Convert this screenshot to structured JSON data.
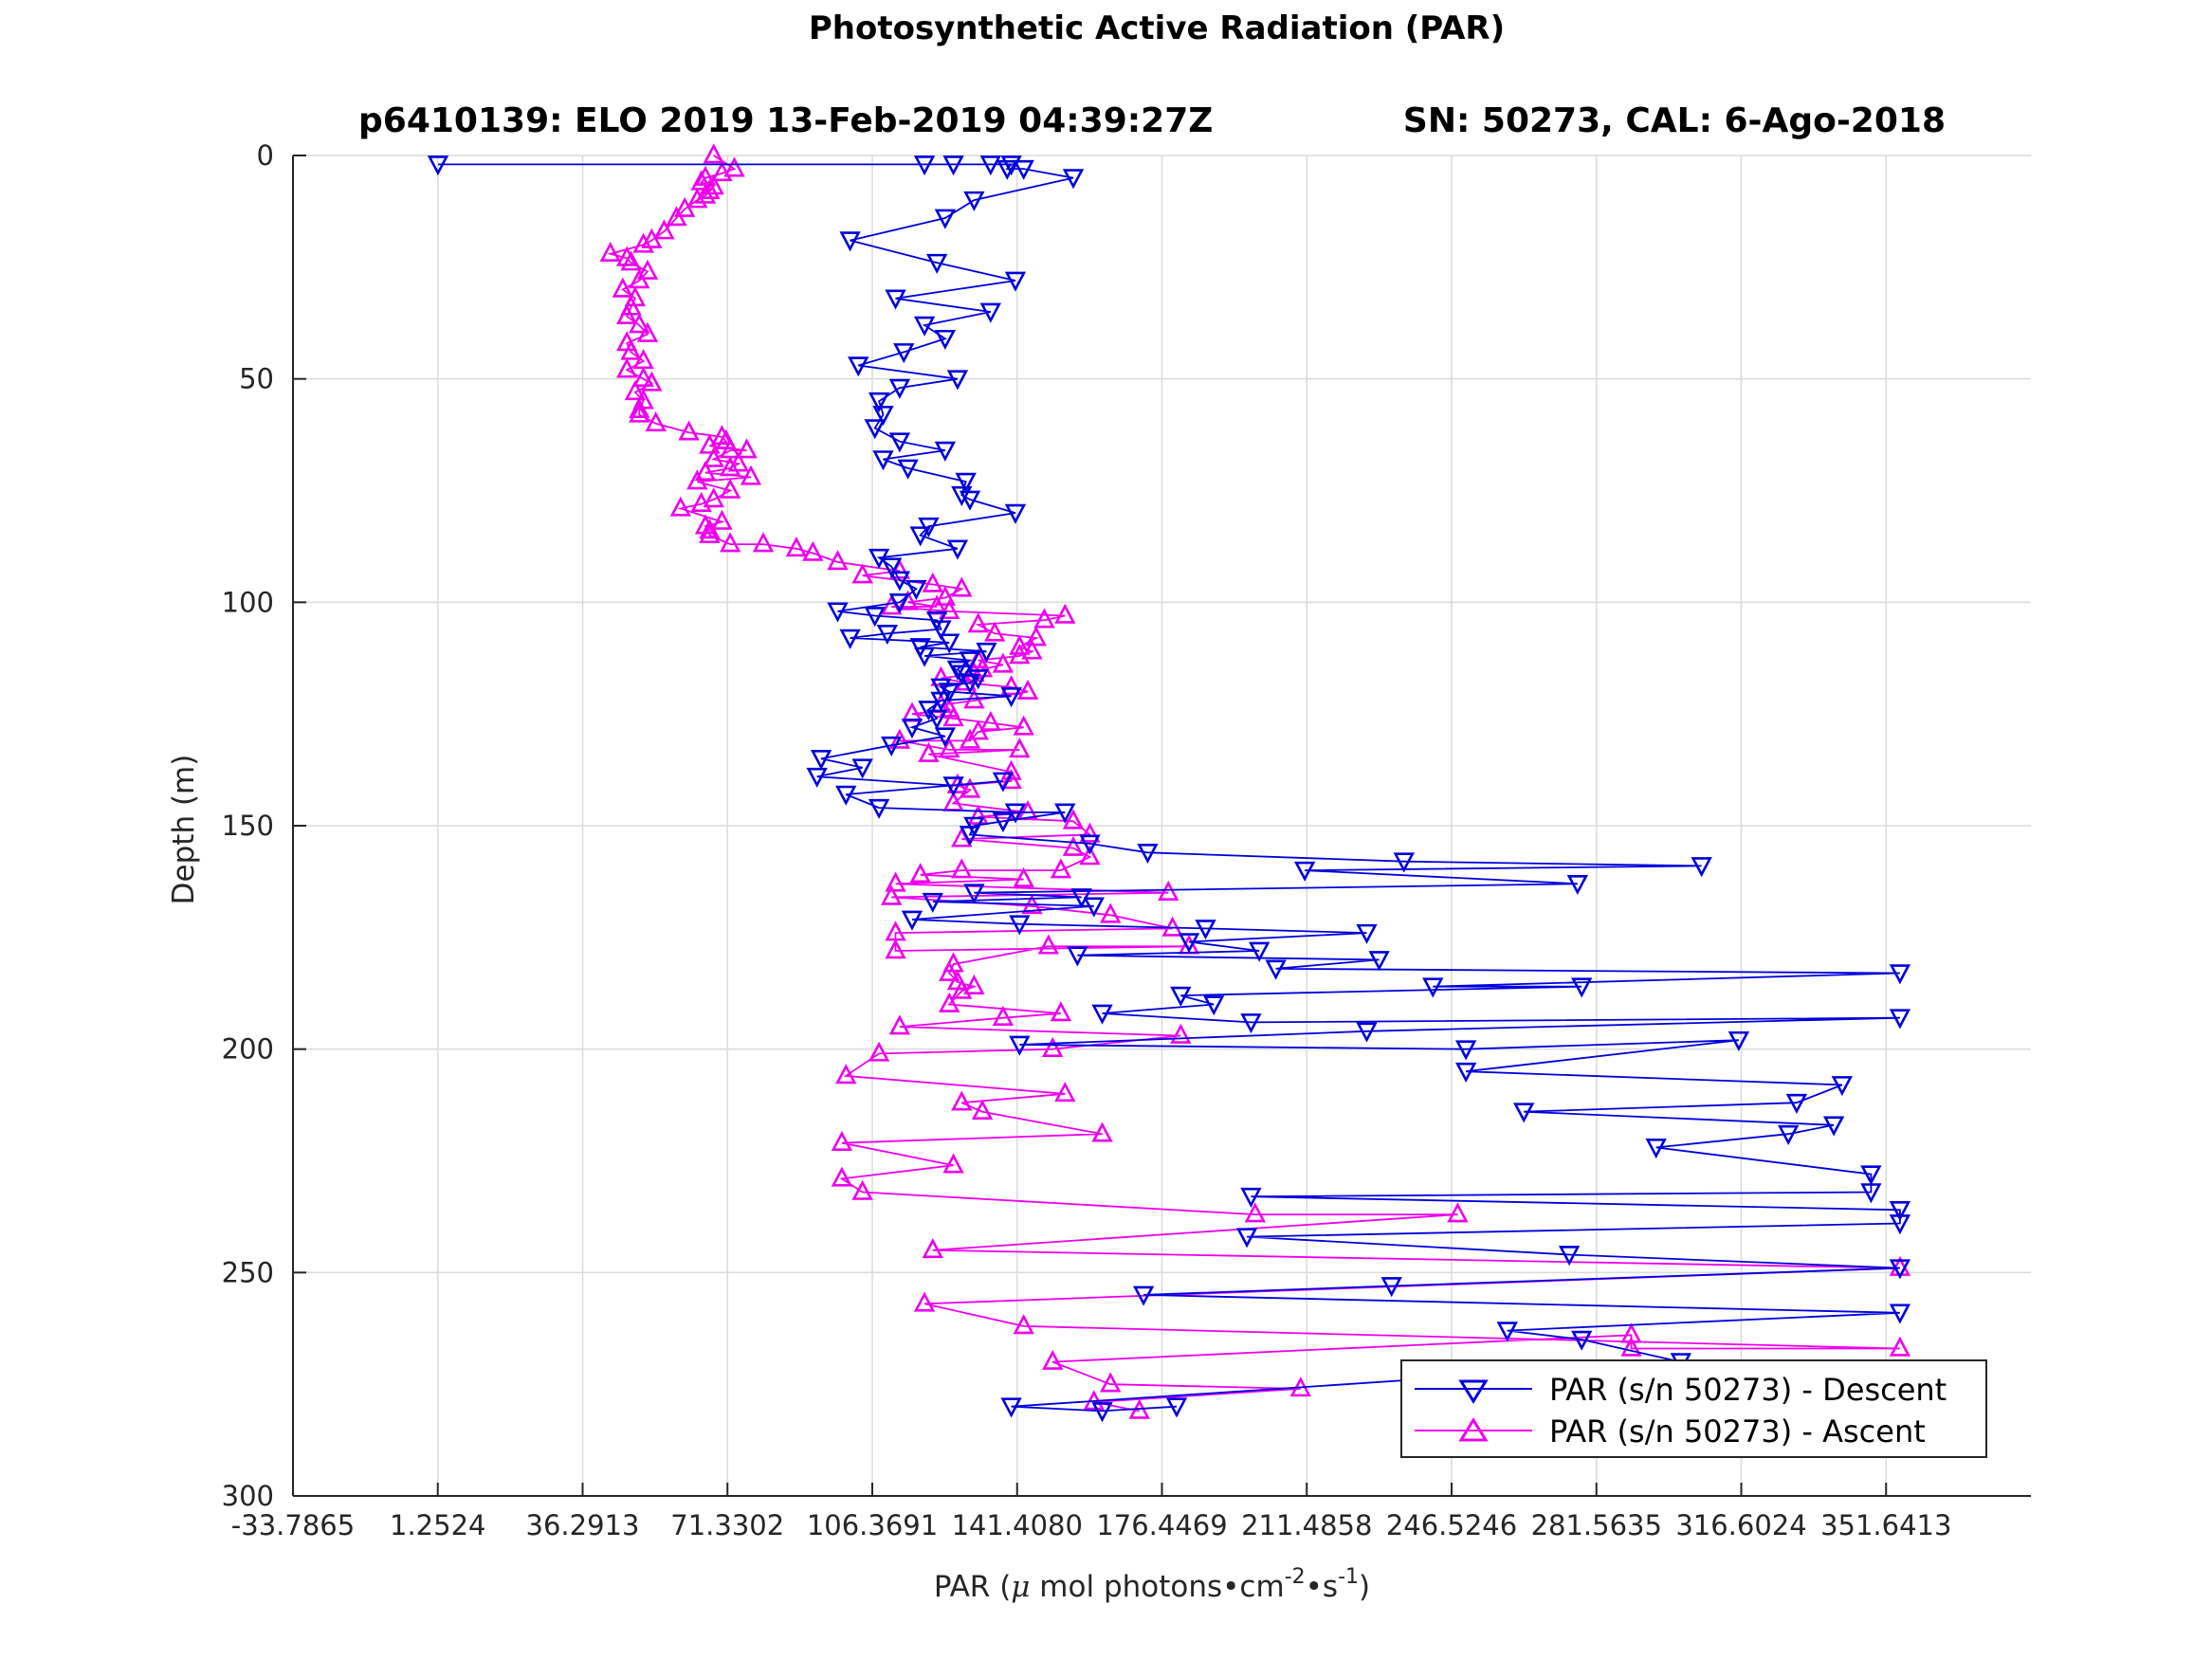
{
  "chart_data": {
    "type": "line",
    "title": "Photosynthetic Active Radiation (PAR)",
    "subtitle_left": "p6410139: ELO 2019 13-Feb-2019 04:39:27Z",
    "subtitle_right": "SN: 50273, CAL: 6-Ago-2018",
    "xlabel": "PAR (μ mol photons•cm⁻²•s⁻¹)",
    "xlabel_parts": {
      "prefix": "PAR (",
      "mu": "μ",
      "mid": " mol photons•cm",
      "exp1": "-2",
      "mid2": "•s",
      "exp2": "-1",
      "suffix": ")"
    },
    "ylabel": "Depth (m)",
    "xlim": [
      -33.7865,
      386.68
    ],
    "ylim": [
      300,
      0
    ],
    "y_reversed": true,
    "x_ticks": [
      -33.7865,
      1.2524,
      36.2913,
      71.3302,
      106.3691,
      141.408,
      176.4469,
      211.4858,
      246.5246,
      281.5635,
      316.6024,
      351.6413
    ],
    "x_tick_labels": [
      "-33.7865",
      "1.2524",
      "36.2913",
      "71.3302",
      "106.3691",
      "141.4080",
      "176.4469",
      "211.4858",
      "246.5246",
      "281.5635",
      "316.6024",
      "351.6413"
    ],
    "y_ticks": [
      0,
      50,
      100,
      150,
      200,
      250,
      300
    ],
    "y_tick_labels": [
      "0",
      "50",
      "100",
      "150",
      "200",
      "250",
      "300"
    ],
    "grid": true,
    "legend_position": "bottom-right",
    "series": [
      {
        "name": "PAR (s/n 50273) - Descent",
        "color": "#0000dd",
        "marker": "triangle-down",
        "points": [
          [
            1.3,
            2
          ],
          [
            119,
            2
          ],
          [
            126,
            2
          ],
          [
            135,
            2
          ],
          [
            140,
            2
          ],
          [
            139,
            3
          ],
          [
            143,
            3
          ],
          [
            155,
            5
          ],
          [
            131,
            10
          ],
          [
            124,
            14
          ],
          [
            101,
            19
          ],
          [
            122,
            24
          ],
          [
            141,
            28
          ],
          [
            112,
            32
          ],
          [
            135,
            35
          ],
          [
            119,
            38
          ],
          [
            124,
            41
          ],
          [
            114,
            44
          ],
          [
            103,
            47
          ],
          [
            127,
            50
          ],
          [
            113,
            52
          ],
          [
            108,
            55
          ],
          [
            109,
            58
          ],
          [
            107,
            61
          ],
          [
            113,
            64
          ],
          [
            124,
            66
          ],
          [
            109,
            68
          ],
          [
            115,
            70
          ],
          [
            129,
            73
          ],
          [
            128,
            76
          ],
          [
            130,
            77
          ],
          [
            141,
            80
          ],
          [
            120,
            83
          ],
          [
            118,
            85
          ],
          [
            127,
            88
          ],
          [
            108,
            90
          ],
          [
            111,
            92
          ],
          [
            113,
            95
          ],
          [
            117,
            97
          ],
          [
            113,
            100
          ],
          [
            98,
            102
          ],
          [
            107,
            103
          ],
          [
            122,
            104
          ],
          [
            123,
            106
          ],
          [
            110,
            107
          ],
          [
            101,
            108
          ],
          [
            125,
            109
          ],
          [
            118,
            110
          ],
          [
            134,
            111
          ],
          [
            119,
            112
          ],
          [
            130,
            113
          ],
          [
            127,
            115
          ],
          [
            128,
            116
          ],
          [
            132,
            117
          ],
          [
            130,
            118
          ],
          [
            123,
            119
          ],
          [
            125,
            120
          ],
          [
            140,
            121
          ],
          [
            123,
            122
          ],
          [
            120,
            124
          ],
          [
            122,
            126
          ],
          [
            116,
            128
          ],
          [
            124,
            130
          ],
          [
            111,
            132
          ],
          [
            94,
            135
          ],
          [
            104,
            137
          ],
          [
            93,
            139
          ],
          [
            126,
            141
          ],
          [
            138,
            140
          ],
          [
            100,
            143
          ],
          [
            108,
            146
          ],
          [
            141,
            147
          ],
          [
            153,
            147
          ],
          [
            138,
            149
          ],
          [
            131,
            150
          ],
          [
            130,
            152
          ],
          [
            159,
            154
          ],
          [
            173,
            156
          ],
          [
            235,
            158
          ],
          [
            307,
            159
          ],
          [
            211,
            160
          ],
          [
            277,
            163
          ],
          [
            131,
            165
          ],
          [
            157,
            166
          ],
          [
            121,
            167
          ],
          [
            160,
            168
          ],
          [
            116,
            171
          ],
          [
            142,
            172
          ],
          [
            187,
            173
          ],
          [
            226,
            174
          ],
          [
            183,
            176
          ],
          [
            200,
            178
          ],
          [
            156,
            179
          ],
          [
            229,
            180
          ],
          [
            204,
            182
          ],
          [
            355,
            183
          ],
          [
            242,
            186
          ],
          [
            278,
            186
          ],
          [
            181,
            188
          ],
          [
            189,
            190
          ],
          [
            162,
            192
          ],
          [
            198,
            194
          ],
          [
            355,
            193
          ],
          [
            226,
            196
          ],
          [
            142,
            199
          ],
          [
            250,
            200
          ],
          [
            316,
            198
          ],
          [
            250,
            205
          ],
          [
            341,
            208
          ],
          [
            330,
            212
          ],
          [
            264,
            214
          ],
          [
            339,
            217
          ],
          [
            328,
            219
          ],
          [
            296,
            222
          ],
          [
            348,
            228
          ],
          [
            348,
            232
          ],
          [
            198,
            233
          ],
          [
            355,
            236
          ],
          [
            355,
            239
          ],
          [
            197,
            242
          ],
          [
            275,
            246
          ],
          [
            355,
            249
          ],
          [
            232,
            253
          ],
          [
            172,
            255
          ],
          [
            355,
            259
          ],
          [
            260,
            263
          ],
          [
            278,
            265
          ],
          [
            302,
            270
          ],
          [
            140,
            280
          ],
          [
            162,
            281
          ],
          [
            180,
            280
          ]
        ]
      },
      {
        "name": "PAR (s/n 50273) - Ascent",
        "color": "#ee00ee",
        "marker": "triangle-up",
        "points": [
          [
            171,
            281
          ],
          [
            160,
            279
          ],
          [
            210,
            276
          ],
          [
            164,
            275
          ],
          [
            150,
            270
          ],
          [
            290,
            264
          ],
          [
            290,
            267
          ],
          [
            355,
            267
          ],
          [
            143,
            262
          ],
          [
            119,
            257
          ],
          [
            355,
            249
          ],
          [
            121,
            245
          ],
          [
            248,
            237
          ],
          [
            199,
            237
          ],
          [
            104,
            232
          ],
          [
            99,
            229
          ],
          [
            126,
            226
          ],
          [
            99,
            221
          ],
          [
            162,
            219
          ],
          [
            133,
            214
          ],
          [
            128,
            212
          ],
          [
            153,
            210
          ],
          [
            100,
            206
          ],
          [
            108,
            201
          ],
          [
            150,
            200
          ],
          [
            181,
            197
          ],
          [
            113,
            195
          ],
          [
            138,
            193
          ],
          [
            152,
            192
          ],
          [
            125,
            190
          ],
          [
            128,
            187
          ],
          [
            131,
            186
          ],
          [
            127,
            185
          ],
          [
            125,
            183
          ],
          [
            126,
            181
          ],
          [
            149,
            177
          ],
          [
            183,
            177
          ],
          [
            112,
            178
          ],
          [
            112,
            174
          ],
          [
            179,
            173
          ],
          [
            164,
            170
          ],
          [
            145,
            168
          ],
          [
            111,
            166
          ],
          [
            178,
            165
          ],
          [
            112,
            163
          ],
          [
            143,
            162
          ],
          [
            118,
            161
          ],
          [
            128,
            160
          ],
          [
            152,
            160
          ],
          [
            159,
            157
          ],
          [
            155,
            155
          ],
          [
            128,
            153
          ],
          [
            159,
            152
          ],
          [
            155,
            149
          ],
          [
            132,
            148
          ],
          [
            144,
            147
          ],
          [
            126,
            145
          ],
          [
            130,
            142
          ],
          [
            127,
            141
          ],
          [
            140,
            140
          ],
          [
            140,
            138
          ],
          [
            120,
            134
          ],
          [
            142,
            133
          ],
          [
            125,
            133
          ],
          [
            113,
            131
          ],
          [
            130,
            131
          ],
          [
            132,
            129
          ],
          [
            143,
            128
          ],
          [
            135,
            127
          ],
          [
            126,
            126
          ],
          [
            116,
            125
          ],
          [
            125,
            124
          ],
          [
            123,
            123
          ],
          [
            131,
            122
          ],
          [
            144,
            120
          ],
          [
            140,
            119
          ],
          [
            129,
            118
          ],
          [
            123,
            117
          ],
          [
            131,
            116
          ],
          [
            133,
            115
          ],
          [
            138,
            114
          ],
          [
            132,
            113
          ],
          [
            142,
            112
          ],
          [
            145,
            111
          ],
          [
            142,
            110
          ],
          [
            146,
            108
          ],
          [
            136,
            107
          ],
          [
            132,
            105
          ],
          [
            148,
            104
          ],
          [
            153,
            103
          ],
          [
            125,
            102
          ],
          [
            111,
            101
          ],
          [
            122,
            101
          ],
          [
            115,
            100
          ],
          [
            124,
            99
          ],
          [
            128,
            97
          ],
          [
            121,
            96
          ],
          [
            104,
            94
          ],
          [
            113,
            93
          ],
          [
            98,
            91
          ],
          [
            92,
            89
          ],
          [
            88,
            88
          ],
          [
            80,
            87
          ],
          [
            72,
            87
          ],
          [
            67,
            85
          ],
          [
            67,
            84
          ],
          [
            66,
            83
          ],
          [
            70,
            82
          ],
          [
            60,
            79
          ],
          [
            65,
            78
          ],
          [
            68,
            77
          ],
          [
            72,
            75
          ],
          [
            64,
            73
          ],
          [
            77,
            72
          ],
          [
            66,
            71
          ],
          [
            72,
            70
          ],
          [
            74,
            69
          ],
          [
            68,
            68
          ],
          [
            72,
            66
          ],
          [
            76,
            66
          ],
          [
            67,
            65
          ],
          [
            71,
            64
          ],
          [
            70,
            63
          ],
          [
            62,
            62
          ],
          [
            54,
            60
          ],
          [
            50,
            58
          ],
          [
            50,
            57
          ],
          [
            51,
            55
          ],
          [
            49,
            53
          ],
          [
            53,
            51
          ],
          [
            51,
            50
          ],
          [
            47,
            48
          ],
          [
            51,
            46
          ],
          [
            48,
            44
          ],
          [
            47,
            42
          ],
          [
            52,
            40
          ],
          [
            50,
            38
          ],
          [
            47,
            36
          ],
          [
            48,
            34
          ],
          [
            49,
            32
          ],
          [
            46,
            30
          ],
          [
            50,
            28
          ],
          [
            52,
            26
          ],
          [
            48,
            24
          ],
          [
            47,
            23
          ],
          [
            43,
            22
          ],
          [
            51,
            20
          ],
          [
            53,
            19
          ],
          [
            56,
            17
          ],
          [
            59,
            14
          ],
          [
            61,
            12
          ],
          [
            64,
            10
          ],
          [
            66,
            9
          ],
          [
            67,
            8
          ],
          [
            68,
            7
          ],
          [
            65,
            6
          ],
          [
            66,
            5
          ],
          [
            70,
            4
          ],
          [
            73,
            3
          ],
          [
            68,
            0
          ]
        ]
      }
    ]
  }
}
